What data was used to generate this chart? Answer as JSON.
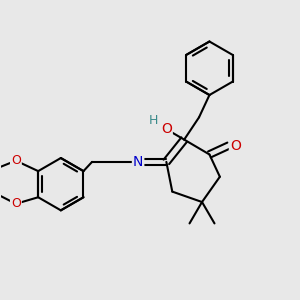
{
  "bg_color": "#e8e8e8",
  "bond_color": "#000000",
  "bond_width": 1.5,
  "atom_colors": {
    "O": "#cc0000",
    "N": "#0000cc",
    "H_teal": "#3a8a8a"
  }
}
